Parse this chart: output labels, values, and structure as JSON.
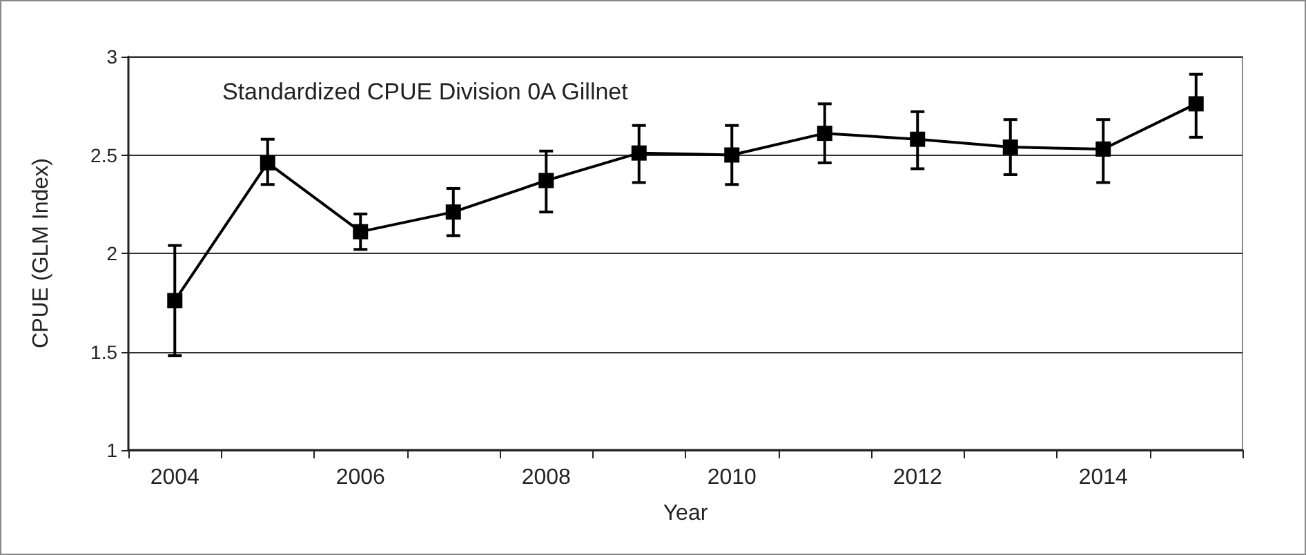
{
  "chart_data": {
    "type": "line",
    "title": "Standardized CPUE Division 0A Gillnet",
    "xlabel": "Year",
    "ylabel": "CPUE (GLM Index)",
    "categories": [
      "2004",
      null,
      "2006",
      null,
      "2008",
      null,
      "2010",
      null,
      "2012",
      null,
      "2014",
      null
    ],
    "series": [
      {
        "color": "#000000",
        "values": [
          1.76,
          2.46,
          2.11,
          2.21,
          2.37,
          2.51,
          2.5,
          2.61,
          2.58,
          2.54,
          2.53,
          2.76
        ],
        "errors": [
          [
            1.48,
            2.04
          ],
          [
            2.35,
            2.58
          ],
          [
            2.02,
            2.2
          ],
          [
            2.09,
            2.33
          ],
          [
            2.21,
            2.52
          ],
          [
            2.36,
            2.65
          ],
          [
            2.35,
            2.65
          ],
          [
            2.46,
            2.76
          ],
          [
            2.43,
            2.72
          ],
          [
            2.4,
            2.68
          ],
          [
            2.36,
            2.68
          ],
          [
            2.59,
            2.91
          ]
        ]
      }
    ],
    "ylim": [
      1,
      3
    ],
    "yticks": [
      1,
      1.5,
      2,
      2.5,
      3
    ],
    "grid": "y",
    "marker": "square",
    "line_style": "solid"
  }
}
